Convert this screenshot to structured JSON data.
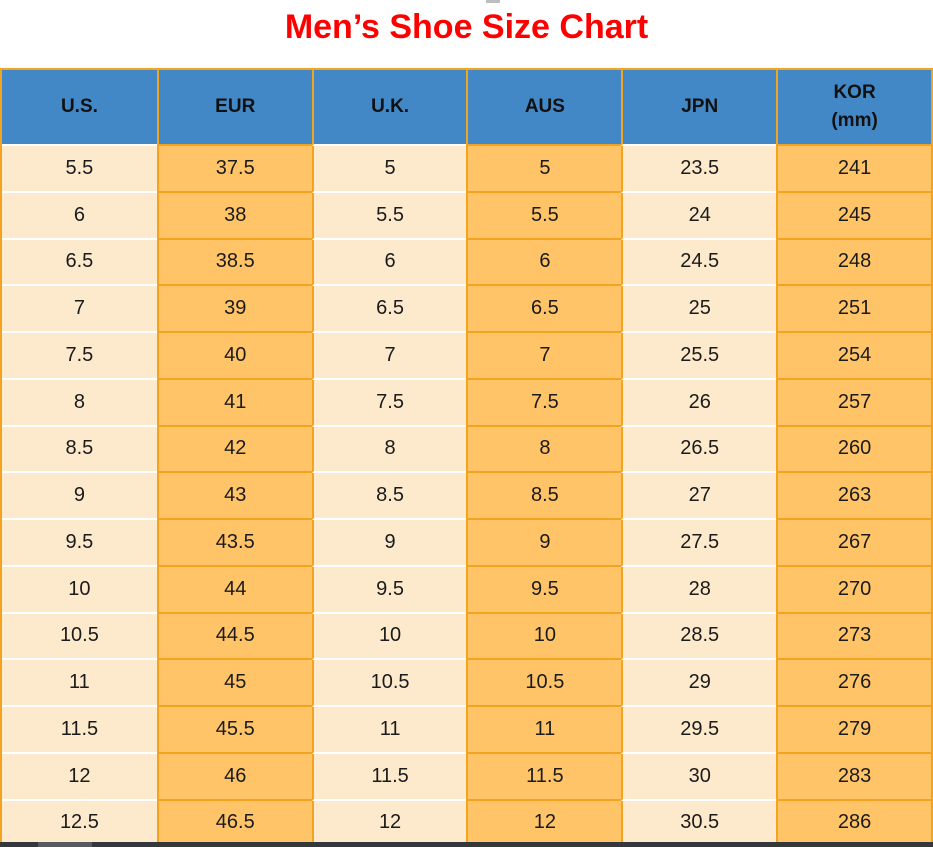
{
  "page": {
    "title": "Men’s Shoe Size Chart"
  },
  "table": {
    "headers": [
      {
        "label": "U.S."
      },
      {
        "label": "EUR"
      },
      {
        "label": "U.K."
      },
      {
        "label": "AUS"
      },
      {
        "label": "JPN"
      },
      {
        "label": "KOR",
        "sub": "(mm)"
      }
    ]
  },
  "chart_data": {
    "type": "table",
    "title": "Men’s Shoe Size Chart",
    "columns": [
      "U.S.",
      "EUR",
      "U.K.",
      "AUS",
      "JPN",
      "KOR (mm)"
    ],
    "rows": [
      [
        "5.5",
        "37.5",
        "5",
        "5",
        "23.5",
        "241"
      ],
      [
        "6",
        "38",
        "5.5",
        "5.5",
        "24",
        "245"
      ],
      [
        "6.5",
        "38.5",
        "6",
        "6",
        "24.5",
        "248"
      ],
      [
        "7",
        "39",
        "6.5",
        "6.5",
        "25",
        "251"
      ],
      [
        "7.5",
        "40",
        "7",
        "7",
        "25.5",
        "254"
      ],
      [
        "8",
        "41",
        "7.5",
        "7.5",
        "26",
        "257"
      ],
      [
        "8.5",
        "42",
        "8",
        "8",
        "26.5",
        "260"
      ],
      [
        "9",
        "43",
        "8.5",
        "8.5",
        "27",
        "263"
      ],
      [
        "9.5",
        "43.5",
        "9",
        "9",
        "27.5",
        "267"
      ],
      [
        "10",
        "44",
        "9.5",
        "9.5",
        "28",
        "270"
      ],
      [
        "10.5",
        "44.5",
        "10",
        "10",
        "28.5",
        "273"
      ],
      [
        "11",
        "45",
        "10.5",
        "10.5",
        "29",
        "276"
      ],
      [
        "11.5",
        "45.5",
        "11",
        "11",
        "29.5",
        "279"
      ],
      [
        "12",
        "46",
        "11.5",
        "11.5",
        "30",
        "283"
      ],
      [
        "12.5",
        "46.5",
        "12",
        "12",
        "30.5",
        "286"
      ]
    ]
  },
  "colors": {
    "title_red": "#fe0000",
    "header_blue": "#4288c7",
    "cell_cream": "#fde9cc",
    "cell_orange": "#ffc368",
    "border_orange": "#f2a31f",
    "row_separator_white": "#ffffff",
    "text_dark": "#1b1b1b",
    "scrollbar_track": "#35383a",
    "scrollbar_thumb": "#585b5e"
  }
}
